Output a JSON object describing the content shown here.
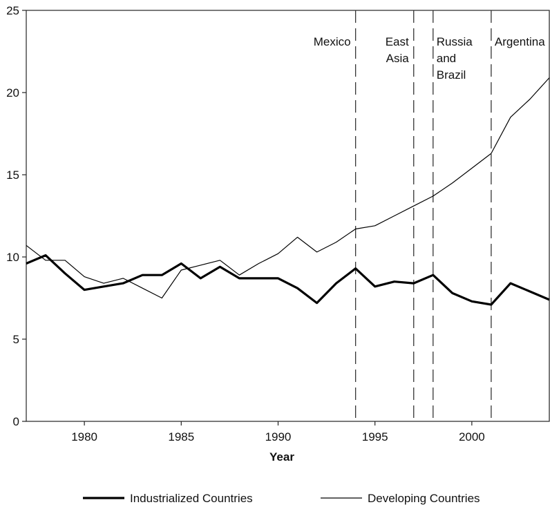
{
  "chart_data": {
    "type": "line",
    "title": "",
    "xlabel": "Year",
    "ylabel": "",
    "xlim": [
      1977,
      2004
    ],
    "ylim": [
      0,
      25
    ],
    "x_ticks": [
      1980,
      1985,
      1990,
      1995,
      2000
    ],
    "y_ticks": [
      0,
      5,
      10,
      15,
      20,
      25
    ],
    "grid": false,
    "legend_position": "bottom",
    "x": [
      1977,
      1978,
      1979,
      1980,
      1981,
      1982,
      1983,
      1984,
      1985,
      1986,
      1987,
      1988,
      1989,
      1990,
      1991,
      1992,
      1993,
      1994,
      1995,
      1996,
      1997,
      1998,
      1999,
      2000,
      2001,
      2002,
      2003,
      2004
    ],
    "series": [
      {
        "name": "Industrialized Countries",
        "style": "thick",
        "color": "#000000",
        "values": [
          9.6,
          10.1,
          9.0,
          8.0,
          8.2,
          8.4,
          8.9,
          8.9,
          9.6,
          8.7,
          9.4,
          8.7,
          8.7,
          8.7,
          8.1,
          7.2,
          8.4,
          9.3,
          8.2,
          8.5,
          8.4,
          8.9,
          7.8,
          7.3,
          7.1,
          8.4,
          7.9,
          7.4
        ]
      },
      {
        "name": "Developing Countries",
        "style": "thin",
        "color": "#000000",
        "values": [
          10.7,
          9.8,
          9.8,
          8.8,
          8.4,
          8.7,
          8.1,
          7.5,
          9.2,
          9.5,
          9.8,
          8.9,
          9.6,
          10.2,
          11.2,
          10.3,
          10.9,
          11.7,
          11.9,
          12.5,
          13.1,
          13.7,
          14.5,
          15.4,
          16.3,
          18.5,
          19.6,
          20.9
        ]
      }
    ],
    "events": [
      {
        "x": 1994,
        "label_lines": [
          "Mexico"
        ],
        "label_side": "left"
      },
      {
        "x": 1997,
        "label_lines": [
          "East",
          "Asia"
        ],
        "label_side": "left"
      },
      {
        "x": 1998,
        "label_lines": [
          "Russia",
          "and",
          "Brazil"
        ],
        "label_side": "right"
      },
      {
        "x": 2001,
        "label_lines": [
          "Argentina"
        ],
        "label_side": "right"
      }
    ]
  }
}
